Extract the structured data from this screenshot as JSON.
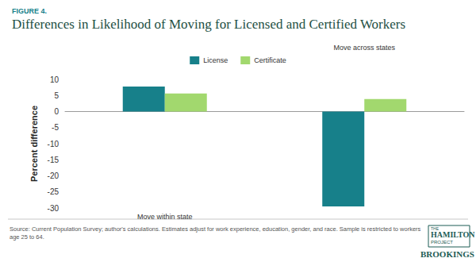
{
  "chart_data": {
    "type": "bar",
    "title": "Differences in Likelihood of Moving for Licensed and Certified Workers",
    "annotations": {
      "figure": "FIGURE 4.",
      "source": [
        "Source: Current Population Survey; author's calculations. Estimates adjust for work experience, education, gender, and race. Sample is restricted to workers",
        "age 25 to 64."
      ],
      "logo": [
        "THE",
        "HAMILTON",
        "PROJECT",
        "BROOKINGS"
      ]
    },
    "y_label": "Percent difference",
    "categories": [
      "Move within state",
      "Move across states"
    ],
    "series": [
      {
        "name": "License",
        "color": "#17808a",
        "values": [
          7.8,
          -29.5
        ]
      },
      {
        "name": "Certificate",
        "color": "#a2d86e",
        "values": [
          5.6,
          3.9
        ]
      }
    ],
    "ylim": [
      -30,
      10
    ],
    "yticks": [
      -30,
      -25,
      -20,
      -15,
      -10,
      -5,
      0,
      5,
      10
    ],
    "grid": false,
    "legend": "top"
  }
}
